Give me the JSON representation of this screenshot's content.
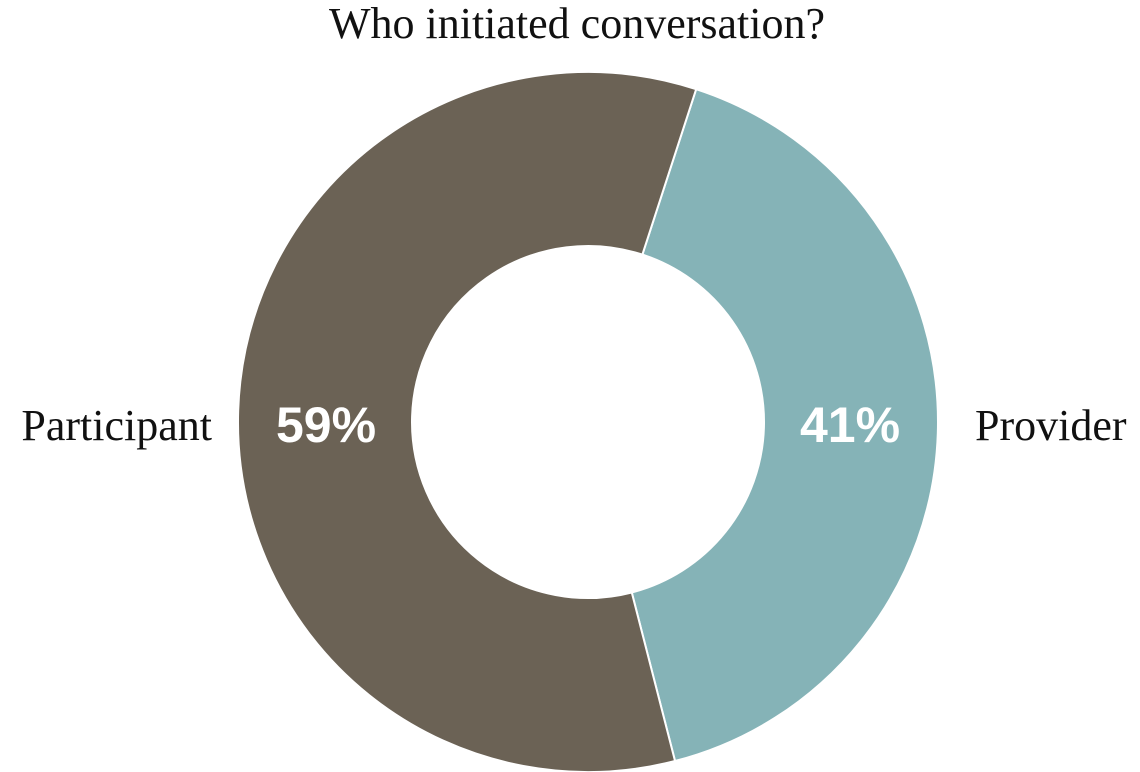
{
  "chart_data": {
    "type": "pie",
    "variant": "donut",
    "title": "Who initiated conversation?",
    "categories": [
      "Participant",
      "Provider"
    ],
    "values": [
      59,
      41
    ],
    "data_labels": [
      "59%",
      "41%"
    ],
    "colors": [
      "#6B6255",
      "#85B3B7"
    ],
    "legend": "none"
  }
}
